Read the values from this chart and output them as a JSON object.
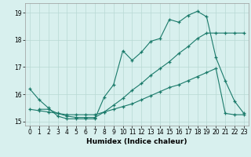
{
  "xlabel": "Humidex (Indice chaleur)",
  "background_color": "#d8f0ee",
  "grid_color": "#b8d8d4",
  "line_color": "#1a7a6a",
  "xlim": [
    -0.5,
    23.5
  ],
  "ylim": [
    14.85,
    19.35
  ],
  "yticks": [
    15,
    16,
    17,
    18,
    19
  ],
  "xticks": [
    0,
    1,
    2,
    3,
    4,
    5,
    6,
    7,
    8,
    9,
    10,
    11,
    12,
    13,
    14,
    15,
    16,
    17,
    18,
    19,
    20,
    21,
    22,
    23
  ],
  "line1_x": [
    0,
    1,
    2,
    3,
    4,
    5,
    6,
    7,
    8,
    9,
    10,
    11,
    12,
    13,
    14,
    15,
    16,
    17,
    18,
    19,
    20,
    21,
    22,
    23
  ],
  "line1_y": [
    16.2,
    15.8,
    15.5,
    15.2,
    15.1,
    15.1,
    15.1,
    15.1,
    15.9,
    16.35,
    17.6,
    17.25,
    17.55,
    17.95,
    18.05,
    18.75,
    18.65,
    18.9,
    19.05,
    18.85,
    17.35,
    16.5,
    15.75,
    15.3
  ],
  "line2_x": [
    0,
    1,
    2,
    3,
    4,
    5,
    6,
    7,
    8,
    9,
    10,
    11,
    12,
    13,
    14,
    15,
    16,
    17,
    18,
    19,
    20,
    21,
    22,
    23
  ],
  "line2_y": [
    15.45,
    15.4,
    15.35,
    15.3,
    15.25,
    15.25,
    15.25,
    15.25,
    15.35,
    15.45,
    15.55,
    15.65,
    15.8,
    15.95,
    16.1,
    16.25,
    16.35,
    16.5,
    16.65,
    16.8,
    16.95,
    15.3,
    15.25,
    15.25
  ],
  "line3_x": [
    1,
    2,
    3,
    4,
    5,
    6,
    7,
    8,
    9,
    10,
    11,
    12,
    13,
    14,
    15,
    16,
    17,
    18,
    19,
    20,
    21,
    22,
    23
  ],
  "line3_y": [
    15.45,
    15.45,
    15.3,
    15.2,
    15.15,
    15.15,
    15.15,
    15.35,
    15.6,
    15.85,
    16.15,
    16.4,
    16.7,
    16.95,
    17.2,
    17.5,
    17.75,
    18.05,
    18.25,
    18.25,
    18.25,
    18.25,
    18.25
  ]
}
